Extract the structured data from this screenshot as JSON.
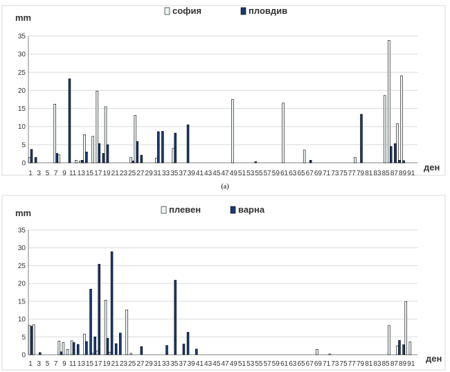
{
  "chart_data": [
    {
      "type": "bar",
      "caption": "(a)",
      "ylabel": "mm",
      "xlabel": "ден",
      "ylim": [
        0,
        35
      ],
      "yticks": [
        0,
        5,
        10,
        15,
        20,
        25,
        30,
        35
      ],
      "xticks": [
        1,
        3,
        5,
        7,
        9,
        11,
        13,
        15,
        17,
        19,
        21,
        23,
        25,
        27,
        29,
        31,
        33,
        35,
        37,
        39,
        41,
        43,
        45,
        47,
        49,
        51,
        53,
        55,
        57,
        59,
        61,
        63,
        65,
        67,
        69,
        71,
        73,
        75,
        77,
        79,
        81,
        83,
        85,
        87,
        89,
        91
      ],
      "grid": true,
      "legend_position": "top",
      "series": [
        {
          "name": "софия",
          "color": "#eef6f4",
          "points": [
            {
              "x": 1,
              "y": 1.5
            },
            {
              "x": 7,
              "y": 16.2
            },
            {
              "x": 8,
              "y": 2.2
            },
            {
              "x": 12,
              "y": 0.7
            },
            {
              "x": 13,
              "y": 0.5
            },
            {
              "x": 14,
              "y": 7.8
            },
            {
              "x": 16,
              "y": 7.3
            },
            {
              "x": 17,
              "y": 19.8
            },
            {
              "x": 19,
              "y": 15.5
            },
            {
              "x": 25,
              "y": 1.5
            },
            {
              "x": 26,
              "y": 13.1
            },
            {
              "x": 31,
              "y": 1.3
            },
            {
              "x": 35,
              "y": 4.0
            },
            {
              "x": 49,
              "y": 17.5
            },
            {
              "x": 61,
              "y": 16.5
            },
            {
              "x": 66,
              "y": 3.5
            },
            {
              "x": 78,
              "y": 1.5
            },
            {
              "x": 85,
              "y": 18.6
            },
            {
              "x": 86,
              "y": 33.8
            },
            {
              "x": 88,
              "y": 10.8
            },
            {
              "x": 89,
              "y": 24.0
            }
          ]
        },
        {
          "name": "пловдив",
          "color": "#1b3a73",
          "points": [
            {
              "x": 1,
              "y": 3.7
            },
            {
              "x": 2,
              "y": 1.5
            },
            {
              "x": 7,
              "y": 2.6
            },
            {
              "x": 10,
              "y": 23.2
            },
            {
              "x": 13,
              "y": 0.7
            },
            {
              "x": 14,
              "y": 3.0
            },
            {
              "x": 17,
              "y": 5.3
            },
            {
              "x": 18,
              "y": 2.6
            },
            {
              "x": 19,
              "y": 5.0
            },
            {
              "x": 25,
              "y": 0.5
            },
            {
              "x": 26,
              "y": 5.9
            },
            {
              "x": 27,
              "y": 2.1
            },
            {
              "x": 31,
              "y": 8.6
            },
            {
              "x": 32,
              "y": 8.7
            },
            {
              "x": 35,
              "y": 8.2
            },
            {
              "x": 38,
              "y": 10.5
            },
            {
              "x": 54,
              "y": 0.3
            },
            {
              "x": 67,
              "y": 0.7
            },
            {
              "x": 79,
              "y": 13.4
            },
            {
              "x": 86,
              "y": 4.5
            },
            {
              "x": 87,
              "y": 5.3
            },
            {
              "x": 88,
              "y": 0.7
            },
            {
              "x": 89,
              "y": 0.6
            }
          ]
        }
      ]
    },
    {
      "type": "bar",
      "ylabel": "mm",
      "xlabel": "ден",
      "ylim": [
        0,
        35
      ],
      "yticks": [
        0,
        5,
        10,
        15,
        20,
        25,
        30,
        35
      ],
      "xticks": [
        1,
        3,
        5,
        7,
        9,
        11,
        13,
        15,
        17,
        19,
        21,
        23,
        25,
        27,
        29,
        31,
        33,
        35,
        37,
        39,
        41,
        43,
        45,
        47,
        49,
        51,
        53,
        55,
        57,
        59,
        61,
        63,
        65,
        67,
        69,
        71,
        73,
        75,
        77,
        79,
        81,
        83,
        85,
        87,
        89,
        91
      ],
      "grid": true,
      "legend_position": "top",
      "series": [
        {
          "name": "плевен",
          "color": "#eef6f4",
          "points": [
            {
              "x": 1,
              "y": 8.2
            },
            {
              "x": 2,
              "y": 8.4
            },
            {
              "x": 8,
              "y": 3.8
            },
            {
              "x": 9,
              "y": 3.4
            },
            {
              "x": 10,
              "y": 1.5
            },
            {
              "x": 11,
              "y": 3.9
            },
            {
              "x": 14,
              "y": 5.8
            },
            {
              "x": 16,
              "y": 0.4
            },
            {
              "x": 17,
              "y": 1.0
            },
            {
              "x": 19,
              "y": 15.3
            },
            {
              "x": 20,
              "y": 0.7
            },
            {
              "x": 24,
              "y": 12.6
            },
            {
              "x": 25,
              "y": 0.4
            },
            {
              "x": 69,
              "y": 1.5
            },
            {
              "x": 72,
              "y": 0.2
            },
            {
              "x": 86,
              "y": 8.2
            },
            {
              "x": 88,
              "y": 2.5
            },
            {
              "x": 90,
              "y": 14.9
            },
            {
              "x": 91,
              "y": 3.6
            }
          ]
        },
        {
          "name": "варна",
          "color": "#1b3a73",
          "points": [
            {
              "x": 1,
              "y": 8.0
            },
            {
              "x": 3,
              "y": 0.6
            },
            {
              "x": 8,
              "y": 0.8
            },
            {
              "x": 11,
              "y": 3.4
            },
            {
              "x": 12,
              "y": 2.9
            },
            {
              "x": 14,
              "y": 3.7
            },
            {
              "x": 15,
              "y": 18.4
            },
            {
              "x": 16,
              "y": 5.0
            },
            {
              "x": 17,
              "y": 25.4
            },
            {
              "x": 19,
              "y": 4.6
            },
            {
              "x": 20,
              "y": 28.9
            },
            {
              "x": 21,
              "y": 3.1
            },
            {
              "x": 22,
              "y": 6.1
            },
            {
              "x": 27,
              "y": 2.3
            },
            {
              "x": 33,
              "y": 2.6
            },
            {
              "x": 35,
              "y": 20.9
            },
            {
              "x": 37,
              "y": 3.0
            },
            {
              "x": 38,
              "y": 6.3
            },
            {
              "x": 40,
              "y": 1.6
            },
            {
              "x": 88,
              "y": 4.0
            },
            {
              "x": 89,
              "y": 2.8
            }
          ]
        }
      ]
    }
  ]
}
